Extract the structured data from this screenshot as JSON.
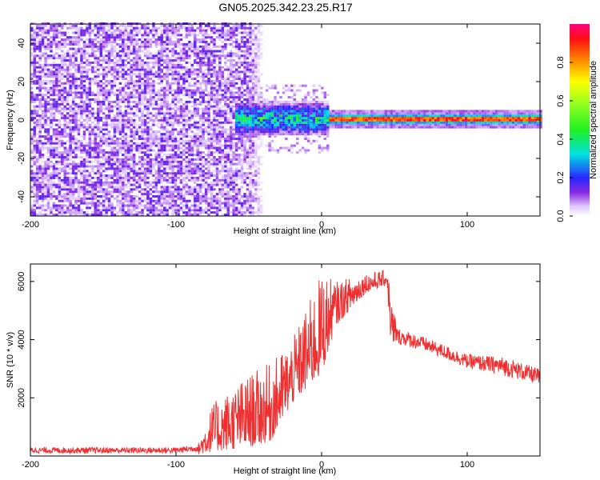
{
  "figure": {
    "title": "GN05.2025.342.23.25.R17"
  },
  "chart_data": [
    {
      "type": "heatmap",
      "xlabel": "Height of straight line (km)",
      "ylabel": "Frequency (Hz)",
      "xlim": [
        -200,
        150
      ],
      "ylim": [
        -50,
        50
      ],
      "xticks": [
        -200,
        -100,
        0,
        100
      ],
      "yticks": [
        -40,
        -20,
        0,
        20,
        40
      ],
      "colorbar": {
        "label": "Normalized spectral amplitude",
        "range": [
          0,
          1
        ],
        "ticks": [
          0.0,
          0.2,
          0.4,
          0.6,
          0.8
        ]
      },
      "features": [
        {
          "x_range": [
            -200,
            -40
          ],
          "freq_range": [
            -50,
            50
          ],
          "amplitude": 0.15,
          "note": "broadband noise"
        },
        {
          "x_range": [
            -60,
            5
          ],
          "freq_range": [
            -8,
            10
          ],
          "amplitude": 0.45
        },
        {
          "x_range": [
            5,
            150
          ],
          "freq_center": 0,
          "amplitude_peak": 0.95
        }
      ]
    },
    {
      "type": "line",
      "xlabel": "Height of straight line (km)",
      "ylabel": "SNR (10 * v/v)",
      "xlim": [
        -200,
        150
      ],
      "ylim": [
        0,
        6600
      ],
      "xticks": [
        -200,
        -100,
        0,
        100
      ],
      "yticks": [
        2000,
        4000,
        6000
      ],
      "series": [
        {
          "color": "#f03030",
          "envelope": [
            {
              "x": -200,
              "low": 0,
              "high": 300
            },
            {
              "x": -100,
              "low": 0,
              "high": 300
            },
            {
              "x": -85,
              "low": 50,
              "high": 400
            },
            {
              "x": -75,
              "low": 150,
              "high": 1800
            },
            {
              "x": -50,
              "low": 300,
              "high": 2800
            },
            {
              "x": -35,
              "low": 500,
              "high": 3200
            },
            {
              "x": -20,
              "low": 1800,
              "high": 4000
            },
            {
              "x": 0,
              "low": 2800,
              "high": 6300
            },
            {
              "x": 10,
              "low": 4500,
              "high": 6000
            },
            {
              "x": 30,
              "low": 5600,
              "high": 6300
            },
            {
              "x": 45,
              "low": 5900,
              "high": 6400
            },
            {
              "x": 48,
              "low": 3500,
              "high": 5600
            },
            {
              "x": 52,
              "low": 3700,
              "high": 4400
            },
            {
              "x": 70,
              "low": 3500,
              "high": 4100
            },
            {
              "x": 100,
              "low": 2900,
              "high": 3500
            },
            {
              "x": 125,
              "low": 2600,
              "high": 3400
            },
            {
              "x": 150,
              "low": 2300,
              "high": 3000
            }
          ]
        }
      ]
    }
  ]
}
